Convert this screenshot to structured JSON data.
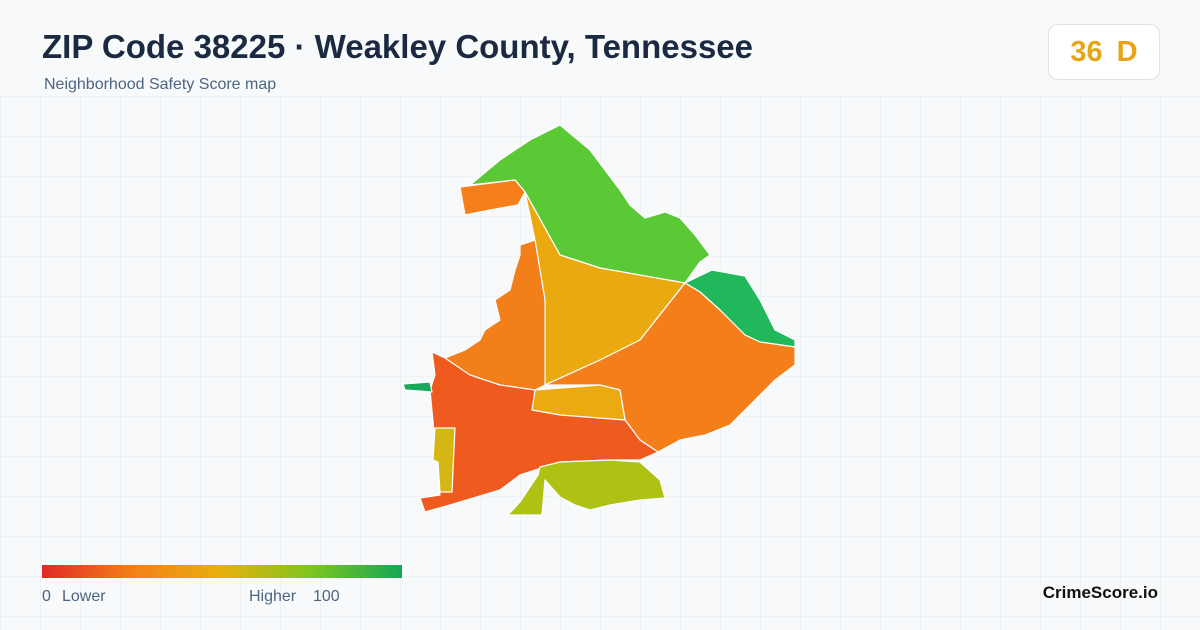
{
  "header": {
    "title": "ZIP Code 38225 · Weakley County, Tennessee",
    "subtitle": "Neighborhood Safety Score map"
  },
  "score": {
    "value": "36",
    "grade": "D"
  },
  "legend": {
    "min": "0",
    "min_label": "Lower",
    "max_label": "Higher",
    "max": "100"
  },
  "brand": "CrimeScore.io"
}
